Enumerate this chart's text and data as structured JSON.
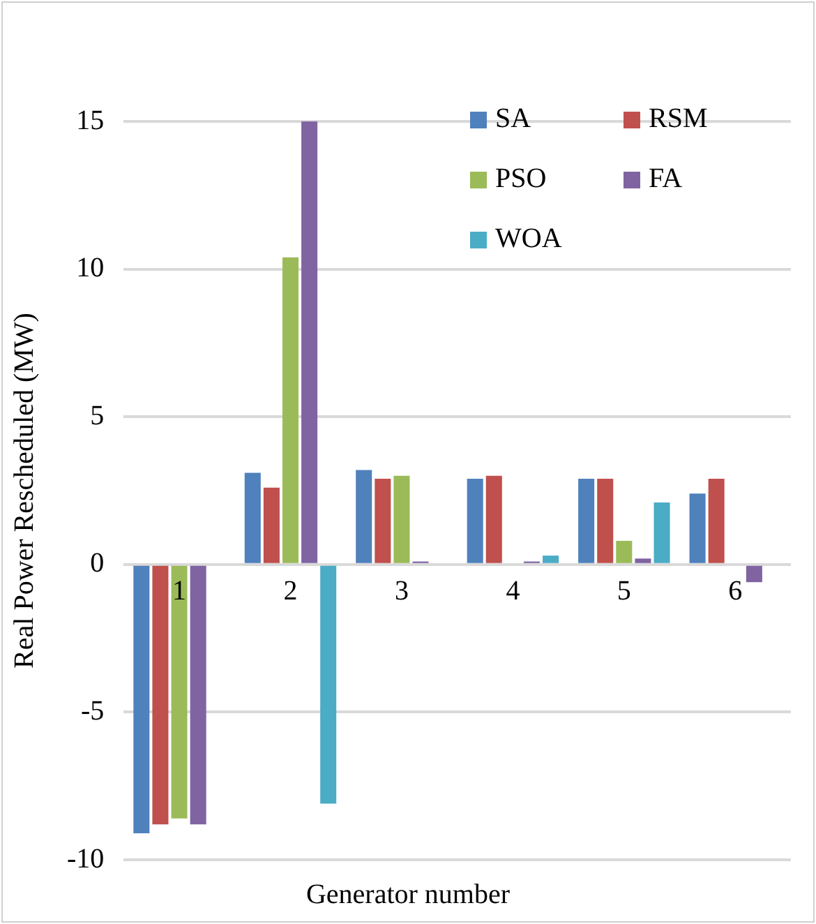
{
  "chart_data": {
    "type": "bar",
    "xlabel": "Generator number",
    "ylabel": "Real Power Rescheduled (MW)",
    "categories": [
      "1",
      "2",
      "3",
      "4",
      "5",
      "6"
    ],
    "series": [
      {
        "name": "SA",
        "color": "#4f81bd",
        "values": [
          -9.1,
          3.1,
          3.2,
          2.9,
          2.9,
          2.4
        ]
      },
      {
        "name": "RSM",
        "color": "#c0504d",
        "values": [
          -8.8,
          2.6,
          2.9,
          3.0,
          2.9,
          2.9
        ]
      },
      {
        "name": "PSO",
        "color": "#9bbb59",
        "values": [
          -8.6,
          10.4,
          3.0,
          null,
          0.8,
          null
        ]
      },
      {
        "name": "FA",
        "color": "#8064a2",
        "values": [
          -8.8,
          15.0,
          0.1,
          0.1,
          0.2,
          -0.6
        ]
      },
      {
        "name": "WOA",
        "color": "#4bacc6",
        "values": [
          null,
          -8.1,
          null,
          0.3,
          2.1,
          null
        ]
      }
    ],
    "ylim": [
      -10,
      15
    ],
    "yticks": [
      -10,
      -5,
      0,
      5,
      10,
      15
    ],
    "grid": "y",
    "legend": "top right"
  }
}
